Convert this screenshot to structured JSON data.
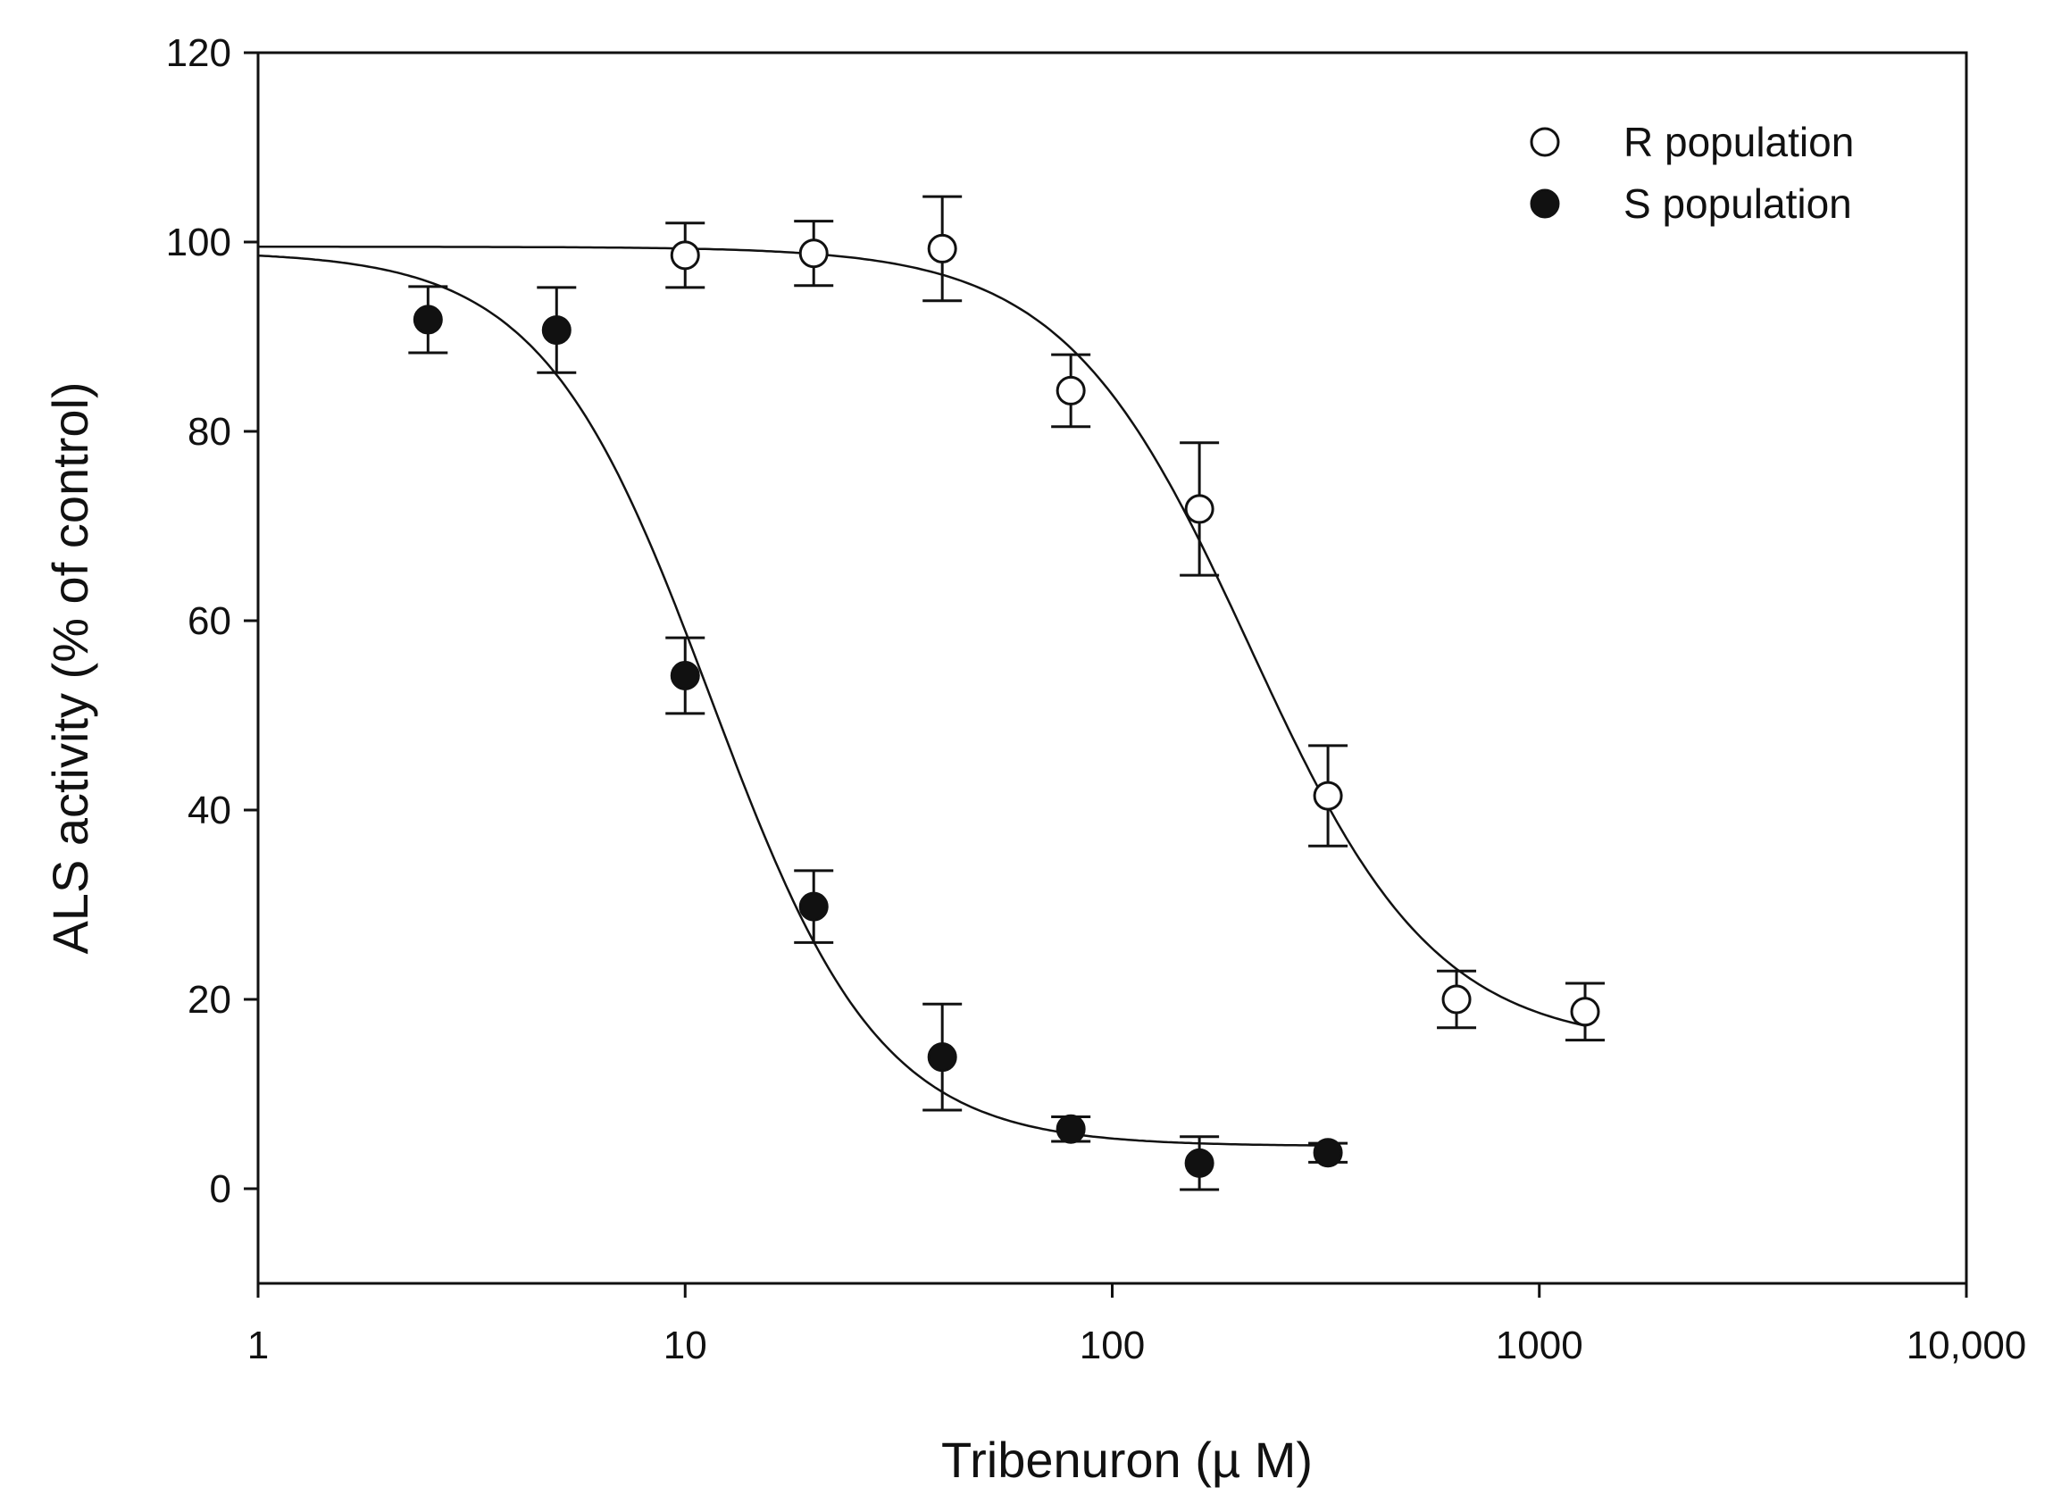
{
  "chart_data": {
    "type": "scatter",
    "title": "",
    "xlabel": "Tribenuron (µ M)",
    "ylabel": "ALS activity (% of control)",
    "xscale": "log",
    "xlim": [
      1,
      10000
    ],
    "ylim": [
      -10,
      120
    ],
    "xticks": [
      1,
      10,
      100,
      1000,
      10000
    ],
    "xtick_labels": [
      "1",
      "10",
      "100",
      "1000",
      "10,000"
    ],
    "yticks": [
      0,
      20,
      40,
      60,
      80,
      100,
      120
    ],
    "ytick_labels": [
      "0",
      "20",
      "40",
      "60",
      "80",
      "100",
      "120"
    ],
    "grid": false,
    "legend_position": "top-right",
    "series": [
      {
        "name": "R population",
        "marker": "open-circle",
        "x": [
          10,
          20,
          40,
          80,
          160,
          320,
          640,
          1280
        ],
        "y": [
          98.6,
          98.8,
          99.3,
          84.3,
          71.8,
          41.5,
          20.0,
          18.7
        ],
        "err": [
          3.4,
          3.4,
          5.5,
          3.8,
          7.0,
          5.3,
          3.0,
          3.0
        ],
        "fit": {
          "model": "log-logistic",
          "top": 99.5,
          "bottom": 15,
          "ec50": 210,
          "slope": 2.0,
          "x_range": [
            1,
            1280
          ]
        }
      },
      {
        "name": "S population",
        "marker": "filled-circle",
        "x": [
          2.5,
          5,
          10,
          20,
          40,
          80,
          160,
          320
        ],
        "y": [
          91.8,
          90.7,
          54.2,
          29.8,
          13.9,
          6.3,
          2.7,
          3.8
        ],
        "err": [
          3.5,
          4.5,
          4.0,
          3.8,
          5.6,
          1.3,
          2.8,
          1.0
        ],
        "fit": {
          "model": "log-logistic",
          "top": 99,
          "bottom": 4.5,
          "ec50": 11.5,
          "slope": 2.2,
          "x_range": [
            1,
            320
          ]
        }
      }
    ]
  },
  "colors": {
    "axis": "#111111",
    "marker": "#111111",
    "background": "#ffffff"
  }
}
